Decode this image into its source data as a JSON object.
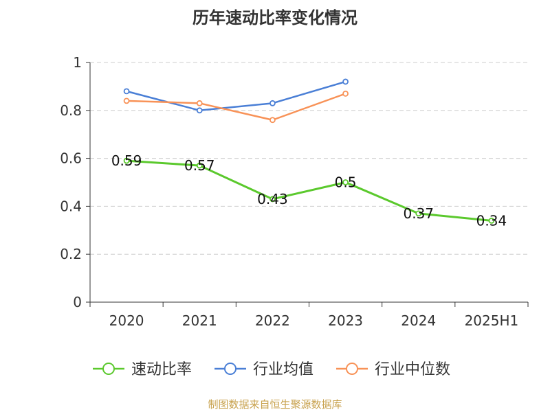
{
  "chart_data": {
    "type": "line",
    "title": "历年速动比率变化情况",
    "categories": [
      "2020",
      "2021",
      "2022",
      "2023",
      "2024",
      "2025H1"
    ],
    "ylim": [
      0,
      1
    ],
    "yticks": [
      "0",
      "0.2",
      "0.4",
      "0.6",
      "0.8",
      "1"
    ],
    "grid": true,
    "legend_position": "bottom",
    "series": [
      {
        "name": "速动比率",
        "color": "#5bc92d",
        "values": [
          0.59,
          0.57,
          0.43,
          0.5,
          0.37,
          0.34
        ],
        "data_labels": [
          "0.59",
          "0.57",
          "0.43",
          "0.5",
          "0.37",
          "0.34"
        ]
      },
      {
        "name": "行业均值",
        "color": "#4a7fd6",
        "values": [
          0.88,
          0.8,
          0.83,
          0.92,
          null,
          null
        ]
      },
      {
        "name": "行业中位数",
        "color": "#f89257",
        "values": [
          0.84,
          0.83,
          0.76,
          0.87,
          null,
          null
        ]
      }
    ]
  },
  "source_note": "制图数据来自恒生聚源数据库"
}
